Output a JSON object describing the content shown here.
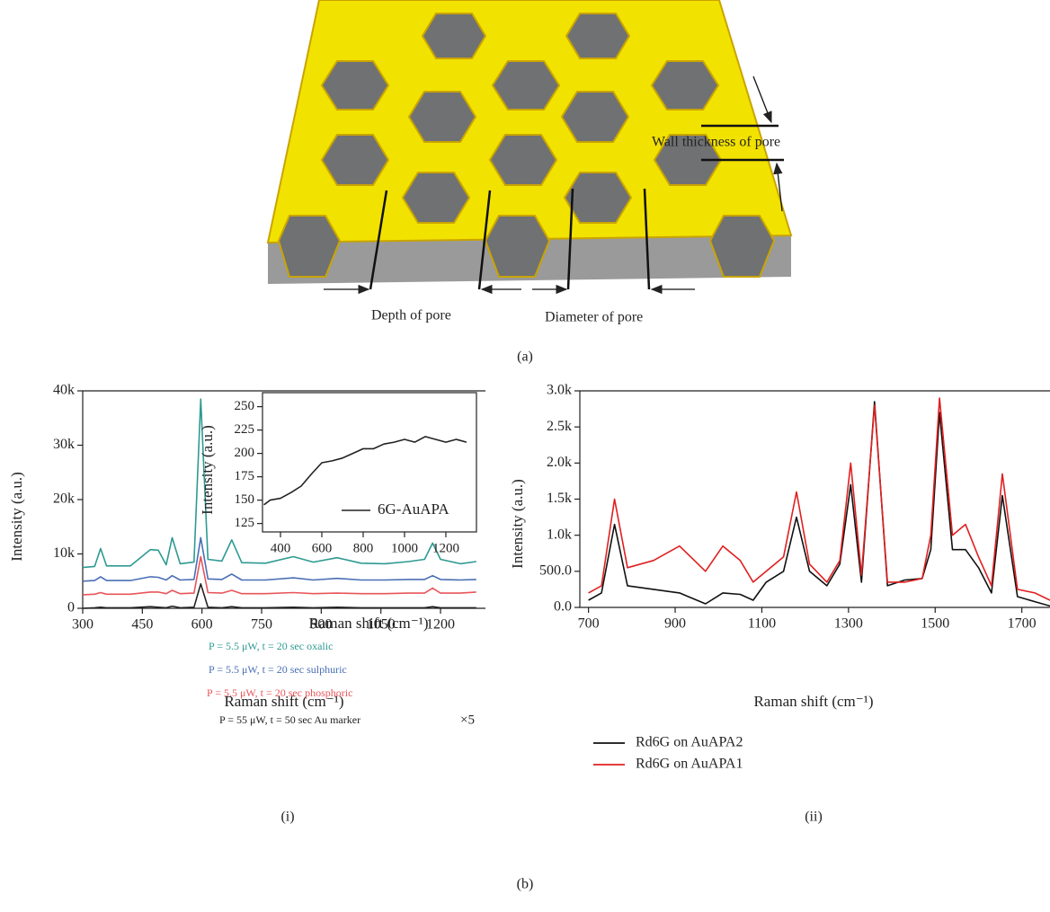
{
  "diagram": {
    "labels": [
      "Wall thickness of pore",
      "Depth of pore",
      "Diameter of pore"
    ]
  },
  "figure_labels": [
    "(a)",
    "(i)",
    "(ii)",
    "(b)"
  ],
  "chart_data": [
    {
      "type": "line",
      "xlabel": "Raman shift (cm⁻¹)",
      "ylabel": "Intensity (a.u.)",
      "xlim": [
        300,
        1313
      ],
      "xticks": [
        300,
        450,
        600,
        750,
        900,
        1050,
        1200
      ],
      "ylim": [
        0,
        40000
      ],
      "yticks": [
        0,
        {
          "value": 10000,
          "label": "10k"
        },
        {
          "value": 20000,
          "label": "20k"
        },
        {
          "value": 30000,
          "label": "30k"
        },
        {
          "value": 40000,
          "label": "40k"
        }
      ],
      "annotation": "×5",
      "x": [
        300,
        330,
        345,
        360,
        420,
        470,
        490,
        510,
        525,
        545,
        580,
        597,
        615,
        650,
        675,
        700,
        760,
        830,
        880,
        940,
        1000,
        1060,
        1120,
        1160,
        1180,
        1200,
        1250,
        1290
      ],
      "series": [
        {
          "name": "P = 5.5 μW, t = 20 sec oxalic",
          "color": "#2e9a92",
          "values": [
            7500,
            7700,
            11000,
            7800,
            7800,
            10800,
            10700,
            8000,
            13000,
            8200,
            8500,
            38500,
            9000,
            8700,
            12600,
            8400,
            8300,
            9500,
            8500,
            9300,
            8300,
            8200,
            8600,
            9000,
            12000,
            9000,
            8200,
            8600
          ]
        },
        {
          "name": "P = 5.5 μW, t = 20 sec sulphuric",
          "color": "#4a6eb5",
          "values": [
            5000,
            5100,
            5800,
            5100,
            5100,
            5800,
            5700,
            5200,
            6000,
            5200,
            5300,
            13000,
            5400,
            5300,
            6300,
            5200,
            5200,
            5600,
            5200,
            5500,
            5200,
            5200,
            5300,
            5300,
            6000,
            5300,
            5200,
            5300
          ]
        },
        {
          "name": "P = 5.5 μW, t = 20 sec phosphoric",
          "color": "#e8555a",
          "values": [
            2500,
            2600,
            2900,
            2600,
            2600,
            3000,
            3000,
            2700,
            3300,
            2700,
            2800,
            9500,
            2900,
            2800,
            3300,
            2700,
            2700,
            2900,
            2700,
            2800,
            2700,
            2700,
            2800,
            2800,
            3700,
            2800,
            2800,
            3000
          ]
        },
        {
          "name": "P = 55 μW, t = 50 sec Au marker",
          "color": "#222222",
          "values": [
            0,
            100,
            200,
            100,
            100,
            300,
            200,
            100,
            400,
            100,
            200,
            4500,
            200,
            100,
            300,
            100,
            100,
            200,
            100,
            200,
            100,
            100,
            100,
            100,
            300,
            100,
            100,
            100
          ]
        }
      ]
    },
    {
      "type": "line",
      "xlabel": "Raman shift (cm⁻¹)",
      "ylabel": "Intensity (a.u.)",
      "legend": "lower right",
      "xlim": [
        313,
        1348
      ],
      "xticks": [
        400,
        600,
        800,
        1000,
        1200
      ],
      "ylim": [
        116,
        265
      ],
      "yticks": [
        125,
        150,
        175,
        200,
        225,
        250
      ],
      "x": [
        320,
        350,
        400,
        450,
        500,
        550,
        600,
        650,
        700,
        750,
        800,
        850,
        900,
        950,
        1000,
        1050,
        1100,
        1150,
        1200,
        1250,
        1300
      ],
      "series": [
        {
          "name": "6G-AuAPA",
          "color": "#222222",
          "values": [
            145,
            150,
            152,
            158,
            165,
            178,
            190,
            192,
            195,
            200,
            205,
            205,
            210,
            212,
            215,
            212,
            218,
            215,
            212,
            215,
            212
          ]
        }
      ]
    },
    {
      "type": "line",
      "xlabel": "Raman shift (cm⁻¹)",
      "ylabel": "Intensity (a.u.)",
      "legend": "below",
      "xlim": [
        680,
        1765
      ],
      "xticks": [
        700,
        900,
        1100,
        1300,
        1500,
        1700
      ],
      "ylim": [
        0,
        3000
      ],
      "yticks": [
        {
          "value": 0,
          "label": "0.0"
        },
        {
          "value": 500,
          "label": "500.0"
        },
        {
          "value": 1000,
          "label": "1.0k"
        },
        {
          "value": 1500,
          "label": "1.5k"
        },
        {
          "value": 2000,
          "label": "2.0k"
        },
        {
          "value": 2500,
          "label": "2.5k"
        },
        {
          "value": 3000,
          "label": "3.0k"
        }
      ],
      "x": [
        700,
        730,
        760,
        790,
        850,
        910,
        970,
        1010,
        1050,
        1080,
        1110,
        1150,
        1180,
        1210,
        1250,
        1280,
        1305,
        1330,
        1360,
        1390,
        1430,
        1470,
        1490,
        1510,
        1540,
        1570,
        1600,
        1630,
        1655,
        1690,
        1730,
        1765
      ],
      "series": [
        {
          "name": "Rd6G on AuAPA2",
          "color": "#111111",
          "values": [
            100,
            200,
            1150,
            300,
            250,
            200,
            50,
            200,
            180,
            100,
            350,
            500,
            1250,
            500,
            300,
            600,
            1700,
            350,
            2850,
            300,
            380,
            400,
            800,
            2700,
            800,
            800,
            550,
            200,
            1550,
            150,
            80,
            20
          ]
        },
        {
          "name": "Rd6G on AuAPA1",
          "color": "#e02020",
          "values": [
            200,
            300,
            1500,
            550,
            650,
            850,
            500,
            850,
            650,
            350,
            500,
            700,
            1600,
            600,
            350,
            650,
            2000,
            450,
            2800,
            350,
            350,
            400,
            1000,
            2900,
            1000,
            1150,
            700,
            300,
            1850,
            250,
            200,
            100
          ]
        }
      ]
    }
  ]
}
